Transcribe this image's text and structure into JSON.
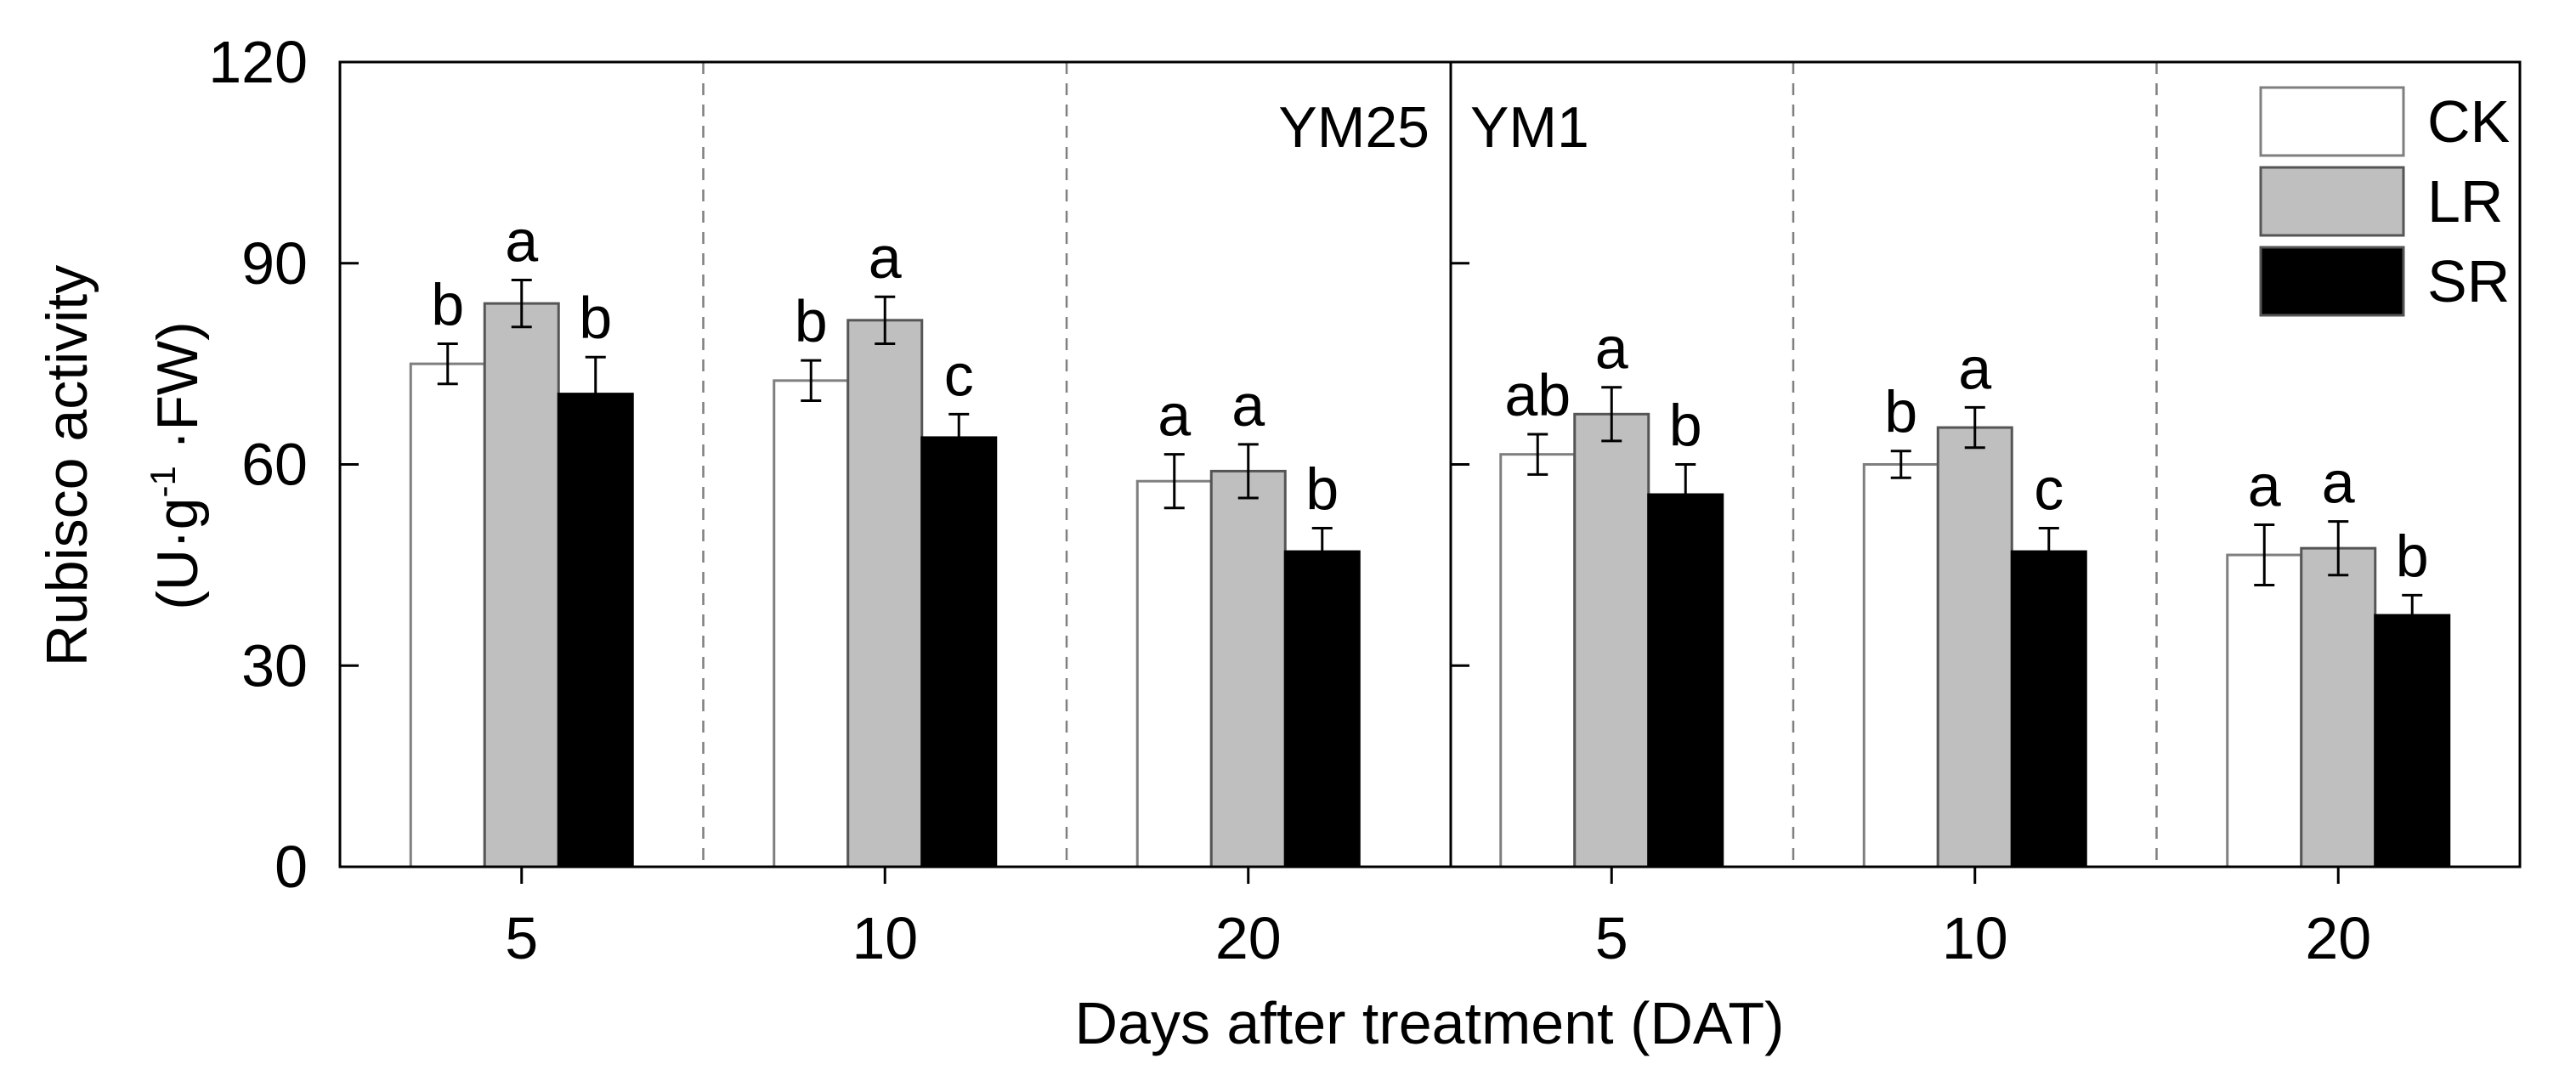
{
  "chart_data": {
    "type": "bar",
    "ylabel_line1": "Rubisco activity",
    "ylabel_line2_parts": [
      "(U·g",
      "-1",
      " ·FW)"
    ],
    "xlabel": "Days after treatment (DAT)",
    "ylim": [
      0,
      120
    ],
    "yticks": [
      "0",
      "30",
      "60",
      "90",
      "120"
    ],
    "ytick_values": [
      0,
      30,
      60,
      90,
      120
    ],
    "panels": [
      {
        "name": "YM25",
        "groups": [
          {
            "label": "5",
            "values": [
              75,
              84,
              70.5
            ],
            "errors": [
              3,
              3.5,
              5.5
            ],
            "letters": [
              "b",
              "a",
              "b"
            ]
          },
          {
            "label": "10",
            "values": [
              72.5,
              81.5,
              64
            ],
            "errors": [
              3,
              3.5,
              3.5
            ],
            "letters": [
              "b",
              "a",
              "c"
            ]
          },
          {
            "label": "20",
            "values": [
              57.5,
              59,
              47
            ],
            "errors": [
              4,
              4,
              3.5
            ],
            "letters": [
              "a",
              "a",
              "b"
            ]
          }
        ]
      },
      {
        "name": "YM1",
        "groups": [
          {
            "label": "5",
            "values": [
              61.5,
              67.5,
              55.5
            ],
            "errors": [
              3,
              4,
              4.5
            ],
            "letters": [
              "ab",
              "a",
              "b"
            ]
          },
          {
            "label": "10",
            "values": [
              60,
              65.5,
              47
            ],
            "errors": [
              2,
              3,
              3.5
            ],
            "letters": [
              "b",
              "a",
              "c"
            ]
          },
          {
            "label": "20",
            "values": [
              46.5,
              47.5,
              37.5
            ],
            "errors": [
              4.5,
              4,
              3
            ],
            "letters": [
              "a",
              "a",
              "b"
            ]
          }
        ]
      }
    ],
    "series": [
      {
        "name": "CK",
        "color": "#ffffff"
      },
      {
        "name": "LR",
        "color": "#bfbfbf"
      },
      {
        "name": "SR",
        "color": "#000000"
      }
    ],
    "legend_position": "top-right"
  }
}
